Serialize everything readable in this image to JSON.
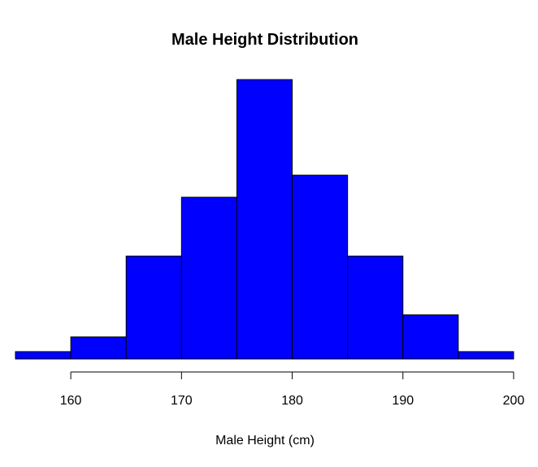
{
  "chart_data": {
    "type": "bar",
    "title": "Male Height Distribution",
    "xlabel": "Male Height (cm)",
    "ylabel": "",
    "bins": [
      {
        "start": 155,
        "end": 160,
        "count": 1
      },
      {
        "start": 160,
        "end": 165,
        "count": 3
      },
      {
        "start": 165,
        "end": 170,
        "count": 14
      },
      {
        "start": 170,
        "end": 175,
        "count": 22
      },
      {
        "start": 175,
        "end": 180,
        "count": 38
      },
      {
        "start": 180,
        "end": 185,
        "count": 25
      },
      {
        "start": 185,
        "end": 190,
        "count": 14
      },
      {
        "start": 190,
        "end": 195,
        "count": 6
      },
      {
        "start": 195,
        "end": 200,
        "count": 1
      }
    ],
    "xticks": [
      160,
      170,
      180,
      190,
      200
    ],
    "xlim": [
      155,
      200
    ],
    "ylim": [
      0,
      38
    ],
    "bar_color": "#0000ff",
    "edge_color": "#000000",
    "grid": false,
    "legend": "none"
  }
}
